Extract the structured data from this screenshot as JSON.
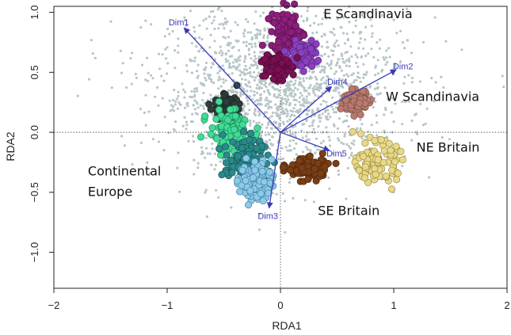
{
  "chart_data": {
    "type": "scatter",
    "title": "",
    "xlabel": "RDA1",
    "ylabel": "RDA2",
    "xlim": [
      -2,
      2
    ],
    "ylim": [
      -1.3,
      1.05
    ],
    "xticks": [
      -2,
      -1,
      0,
      1,
      2
    ],
    "yticks": [
      -1.0,
      -0.5,
      0.0,
      0.5,
      1.0
    ],
    "xtick_labels": [
      "−2",
      "−1",
      "0",
      "1",
      "2"
    ],
    "ytick_labels": [
      "−1.0",
      "−0.5",
      "0.0",
      "0.5",
      "1.0"
    ],
    "reference_lines": {
      "x": 0,
      "y": 0,
      "style": "dotted"
    },
    "background_points": {
      "color": "#b8c6c9",
      "center": [
        0.0,
        0.35
      ],
      "spread": [
        0.55,
        0.35
      ]
    },
    "clusters": [
      {
        "label": "E Scandinavia",
        "color": "#8b1f7a",
        "edge": "#5a1150",
        "center": [
          0.06,
          0.82
        ],
        "spread": [
          0.07,
          0.1
        ]
      },
      {
        "label": "E Scandinavia",
        "color": "#8b3fbf",
        "edge": "#5c2a80",
        "center": [
          0.2,
          0.65
        ],
        "spread": [
          0.06,
          0.05
        ]
      },
      {
        "label": "E Scandinavia",
        "color": "#7a0f52",
        "edge": "#4d0a34",
        "center": [
          -0.05,
          0.55
        ],
        "spread": [
          0.06,
          0.06
        ]
      },
      {
        "label": "W Scandinavia",
        "color": "#b87a6f",
        "edge": "#7d4f47",
        "center": [
          0.67,
          0.26
        ],
        "spread": [
          0.06,
          0.045
        ]
      },
      {
        "label": "NE Britain",
        "color": "#e8d98a",
        "edge": "#9c8c3c",
        "center": [
          0.85,
          -0.25
        ],
        "spread": [
          0.09,
          0.08
        ]
      },
      {
        "label": "SE Britain",
        "color": "#7a3f16",
        "edge": "#4e2609",
        "center": [
          0.24,
          -0.3
        ],
        "spread": [
          0.09,
          0.045
        ]
      },
      {
        "label": "Continental Europe",
        "color": "#2f3e3a",
        "edge": "#1c2624",
        "center": [
          -0.48,
          0.22
        ],
        "spread": [
          0.05,
          0.04
        ]
      },
      {
        "label": "Continental Europe",
        "color": "#3fdc96",
        "edge": "#1f8a5a",
        "center": [
          -0.45,
          0.0
        ],
        "spread": [
          0.09,
          0.1
        ]
      },
      {
        "label": "Continental Europe",
        "color": "#2a8a8a",
        "edge": "#17555a",
        "center": [
          -0.3,
          -0.25
        ],
        "spread": [
          0.1,
          0.1
        ]
      },
      {
        "label": "Continental Europe",
        "color": "#8ec9e8",
        "edge": "#3f7fa6",
        "center": [
          -0.22,
          -0.4
        ],
        "spread": [
          0.07,
          0.08
        ]
      }
    ],
    "vectors": [
      {
        "name": "Dim1",
        "x": -0.85,
        "y": 0.87
      },
      {
        "name": "Dim2",
        "x": 1.02,
        "y": 0.52
      },
      {
        "name": "Dim3",
        "x": -0.1,
        "y": -0.63
      },
      {
        "name": "Dim4",
        "x": 0.45,
        "y": 0.38
      },
      {
        "name": "Dim5",
        "x": 0.43,
        "y": -0.15
      }
    ],
    "vector_color": "#3a3ab8",
    "annotations": [
      {
        "text": "E Scandinavia",
        "x": 0.38,
        "y": 0.95
      },
      {
        "text": "W Scandinavia",
        "x": 0.93,
        "y": 0.26
      },
      {
        "text": "NE Britain",
        "x": 1.2,
        "y": -0.16
      },
      {
        "text": "SE Britain",
        "x": 0.33,
        "y": -0.69
      },
      {
        "text": "Continental",
        "x": -1.7,
        "y": -0.36
      },
      {
        "text": "Europe",
        "x": -1.7,
        "y": -0.53
      }
    ]
  }
}
